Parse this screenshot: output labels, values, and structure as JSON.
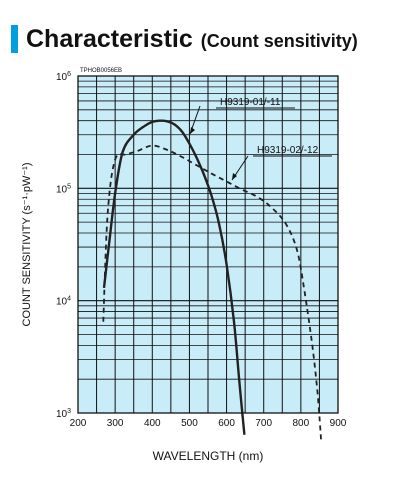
{
  "header": {
    "title": "Characteristic",
    "subtitle": "(Count sensitivity)",
    "accent_color": "#00a0e0"
  },
  "chart_data": {
    "type": "line",
    "code": "TPHOB0056EB",
    "xlabel": "WAVELENGTH (nm)",
    "ylabel": "COUNT SENSITIVITY (s⁻¹·pW⁻¹)",
    "xlim": [
      200,
      900
    ],
    "ylim": [
      1000,
      1000000
    ],
    "yscale": "log",
    "grid": true,
    "plot_background": "#c8ecf8",
    "x_ticks": [
      "200",
      "300",
      "400",
      "500",
      "600",
      "700",
      "800",
      "900"
    ],
    "y_ticks": [
      {
        "base": "10",
        "exp": "3",
        "value": 1000
      },
      {
        "base": "10",
        "exp": "4",
        "value": 10000
      },
      {
        "base": "10",
        "exp": "5",
        "value": 100000
      },
      {
        "base": "10",
        "exp": "6",
        "value": 1000000
      }
    ],
    "series": [
      {
        "name": "H9319-01/-11",
        "style": "solid",
        "x": [
          270,
          285,
          300,
          320,
          350,
          380,
          400,
          420,
          440,
          460,
          480,
          500,
          520,
          540,
          560,
          580,
          600,
          620,
          635,
          648
        ],
        "y": [
          13000,
          35000,
          90000,
          210000,
          300000,
          360000,
          390000,
          400000,
          395000,
          370000,
          320000,
          250000,
          185000,
          130000,
          85000,
          48000,
          21000,
          6500,
          1800,
          640
        ]
      },
      {
        "name": "H9319-02/-12",
        "style": "dashed",
        "x": [
          268,
          280,
          300,
          330,
          360,
          400,
          440,
          480,
          520,
          560,
          600,
          640,
          680,
          720,
          760,
          790,
          810,
          830,
          845,
          855
        ],
        "y": [
          6500,
          60000,
          180000,
          200000,
          215000,
          240000,
          220000,
          190000,
          160000,
          135000,
          115000,
          98000,
          85000,
          68000,
          48000,
          28000,
          12000,
          4200,
          1500,
          540
        ]
      }
    ]
  }
}
